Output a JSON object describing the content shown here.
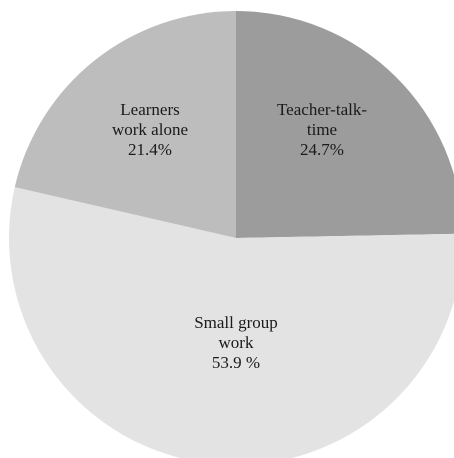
{
  "chart_data": {
    "type": "pie",
    "slices": [
      {
        "lines": [
          "Teacher-talk-",
          "time",
          "24.7%"
        ],
        "value": 24.7,
        "color": "#9c9c9c"
      },
      {
        "lines": [
          "Small group",
          "work",
          "53.9 %"
        ],
        "value": 53.9,
        "color": "#e3e3e3"
      },
      {
        "lines": [
          "Learners",
          "work alone",
          "21.4%"
        ],
        "value": 21.4,
        "color": "#bdbdbd"
      }
    ],
    "start": "top",
    "direction": "clockwise",
    "legend": "none"
  }
}
